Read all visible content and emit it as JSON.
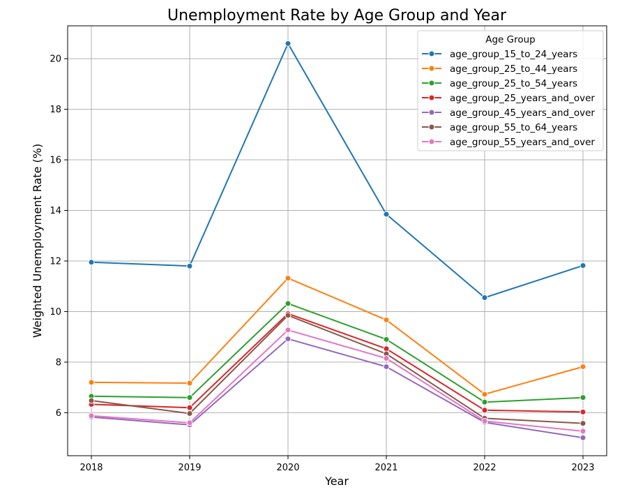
{
  "chart_data": {
    "type": "line",
    "title": "Unemployment Rate by Age Group and Year",
    "xlabel": "Year",
    "ylabel": "Weighted Unemployment Rate (%)",
    "x": [
      "2018",
      "2019",
      "2020",
      "2021",
      "2022",
      "2023"
    ],
    "yticks": [
      "6",
      "8",
      "10",
      "12",
      "14",
      "16",
      "18",
      "20"
    ],
    "ylim": [
      4.3,
      21.3
    ],
    "grid": true,
    "legend_title": "Age Group",
    "legend_position": "top-right",
    "series": [
      {
        "name": "age_group_15_to_24_years",
        "color": "#1f77b4",
        "values": [
          11.95,
          11.8,
          20.6,
          13.85,
          10.55,
          11.82
        ]
      },
      {
        "name": "age_group_25_to_44_years",
        "color": "#ff7f0e",
        "values": [
          7.2,
          7.17,
          11.32,
          9.67,
          6.73,
          7.82
        ]
      },
      {
        "name": "age_group_25_to_54_years",
        "color": "#2ca02c",
        "values": [
          6.65,
          6.6,
          10.32,
          8.9,
          6.42,
          6.6
        ]
      },
      {
        "name": "age_group_25_years_and_over",
        "color": "#d62728",
        "values": [
          6.33,
          6.2,
          9.92,
          8.53,
          6.1,
          6.03
        ]
      },
      {
        "name": "age_group_45_years_and_over",
        "color": "#9467bd",
        "values": [
          5.83,
          5.52,
          8.92,
          7.82,
          5.62,
          5.01
        ]
      },
      {
        "name": "age_group_55_to_64_years",
        "color": "#8c564b",
        "values": [
          6.48,
          5.97,
          9.85,
          8.33,
          5.78,
          5.58
        ]
      },
      {
        "name": "age_group_55_years_and_over",
        "color": "#e377c2",
        "values": [
          5.88,
          5.6,
          9.27,
          8.15,
          5.67,
          5.27
        ]
      }
    ]
  }
}
